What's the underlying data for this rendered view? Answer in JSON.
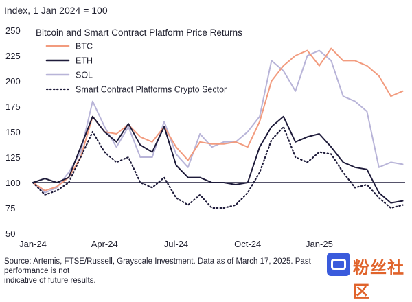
{
  "chart_data": {
    "type": "line",
    "index_note": "Index, 1 Jan 2024 = 100",
    "title": "Bitcoin and Smart Contract Platform Price Returns",
    "xlabel": "",
    "ylabel": "",
    "ylim": [
      50,
      250
    ],
    "yticks": [
      "250",
      "225",
      "200",
      "175",
      "150",
      "125",
      "100",
      "75",
      "50"
    ],
    "xticks": [
      "Jan-24",
      "Apr-24",
      "Jul-24",
      "Oct-24",
      "Jan-25"
    ],
    "reference_line": 100,
    "grid": false,
    "legend_position": "top-left",
    "x_months": [
      0,
      0.5,
      1,
      1.5,
      2,
      2.5,
      3,
      3.5,
      4,
      4.5,
      5,
      5.5,
      6,
      6.5,
      7,
      7.5,
      8,
      8.5,
      9,
      9.5,
      10,
      10.5,
      11,
      11.5,
      12,
      12.5,
      13,
      13.5,
      14,
      14.5,
      15,
      15.5
    ],
    "series": [
      {
        "name": "BTC",
        "color": "#f29b7e",
        "dash": "solid",
        "values": [
          100,
          92,
          96,
          105,
          125,
          165,
          150,
          148,
          157,
          145,
          140,
          155,
          135,
          122,
          140,
          138,
          138,
          140,
          135,
          160,
          200,
          215,
          225,
          230,
          215,
          232,
          220,
          220,
          215,
          205,
          185,
          190
        ]
      },
      {
        "name": "ETH",
        "color": "#1e1b3a",
        "dash": "solid",
        "values": [
          100,
          104,
          100,
          105,
          135,
          165,
          150,
          140,
          158,
          137,
          130,
          155,
          117,
          105,
          105,
          100,
          100,
          98,
          100,
          135,
          155,
          165,
          140,
          145,
          148,
          135,
          120,
          115,
          113,
          90,
          80,
          82
        ]
      },
      {
        "name": "SOL",
        "color": "#b8b4d8",
        "dash": "solid",
        "values": [
          100,
          90,
          95,
          110,
          130,
          180,
          155,
          135,
          155,
          125,
          125,
          160,
          128,
          115,
          148,
          135,
          140,
          140,
          150,
          165,
          220,
          210,
          190,
          225,
          230,
          220,
          185,
          180,
          170,
          115,
          120,
          118
        ]
      },
      {
        "name": "Smart Contract Platforms Crypto Sector",
        "color": "#1e1b3a",
        "dash": "dotted",
        "values": [
          100,
          88,
          92,
          100,
          125,
          150,
          130,
          120,
          125,
          100,
          95,
          105,
          85,
          78,
          88,
          75,
          75,
          78,
          90,
          110,
          142,
          155,
          125,
          120,
          130,
          128,
          110,
          95,
          98,
          85,
          75,
          78
        ]
      }
    ],
    "source": "Source: Artemis, FTSE/Russell, Grayscale Investment. Data as of March 17, 2025. Past performance is not",
    "source_line2": "indicative of future results."
  },
  "watermark": {
    "text": "粉丝社区",
    "icon": "app-logo-icon"
  }
}
